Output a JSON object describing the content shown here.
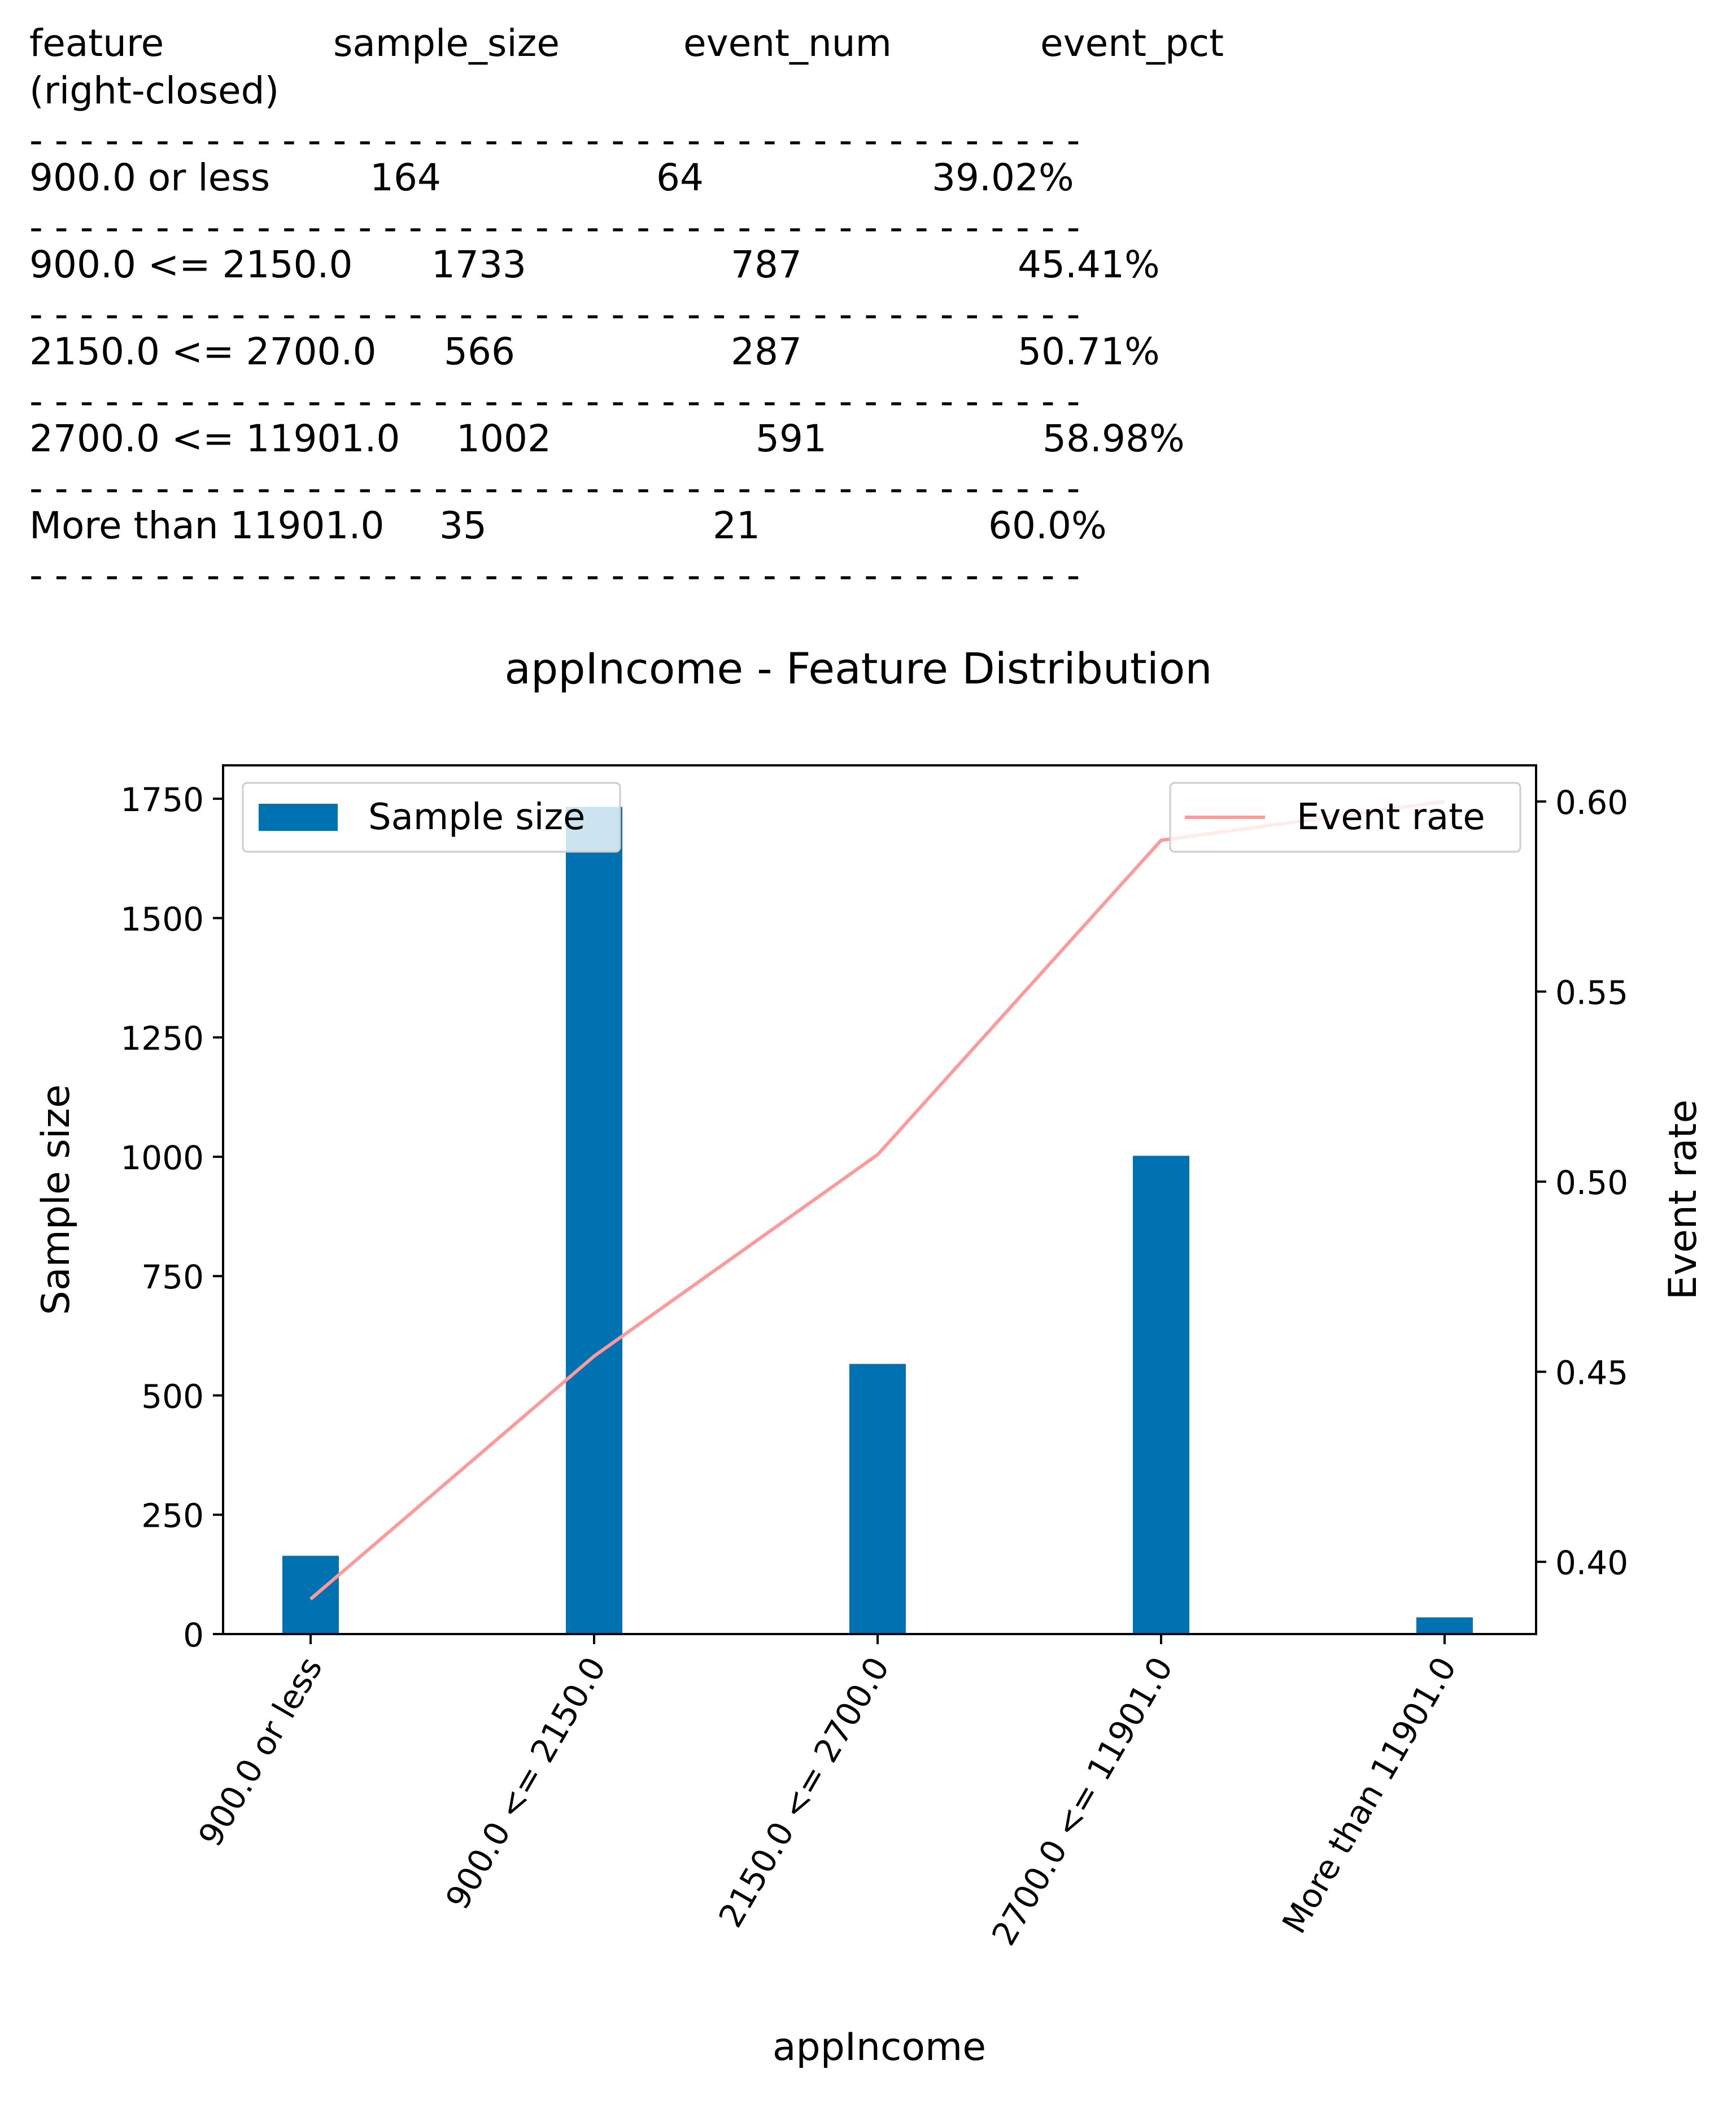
{
  "stats_table": {
    "headers": [
      "feature",
      "sample_size",
      "event_num",
      "event_pct"
    ],
    "header_sub": "(right-closed)",
    "rows": [
      [
        "900.0 or less",
        "164",
        "64",
        "39.02%"
      ],
      [
        "900.0 <= 2150.0",
        "1733",
        "787",
        "45.41%"
      ],
      [
        "2150.0 <= 2700.0",
        "566",
        "287",
        "50.71%"
      ],
      [
        "2700.0 <= 11901.0",
        "1002",
        "591",
        "58.98%"
      ],
      [
        "More than 11901.0",
        "35",
        "21",
        "60.0%"
      ]
    ]
  },
  "chart_data": {
    "type": "bar",
    "title": "appIncome - Feature Distribution",
    "xlabel": "appIncome",
    "ylabel": "Sample size",
    "y2label": "Event rate",
    "categories": [
      "900.0 or less",
      "900.0 <= 2150.0",
      "2150.0 <= 2700.0",
      "2700.0 <= 11901.0",
      "More than 11901.0"
    ],
    "series": [
      {
        "name": "Sample size",
        "type": "bar",
        "axis": "left",
        "color": "#0072b2",
        "values": [
          164,
          1733,
          566,
          1002,
          35
        ]
      },
      {
        "name": "Event rate",
        "type": "line",
        "axis": "right",
        "color": "#ff9a9a",
        "values": [
          0.3902,
          0.4541,
          0.5071,
          0.5898,
          0.6
        ]
      }
    ],
    "ylim": [
      0,
      1820
    ],
    "y2lim": [
      0.381,
      0.6095
    ],
    "yticks": [
      0,
      250,
      500,
      750,
      1000,
      1250,
      1500,
      1750
    ],
    "y2ticks": [
      0.4,
      0.45,
      0.5,
      0.55,
      0.6
    ],
    "legend_left": "upper-left",
    "legend_right": "upper-right",
    "grid": false
  }
}
